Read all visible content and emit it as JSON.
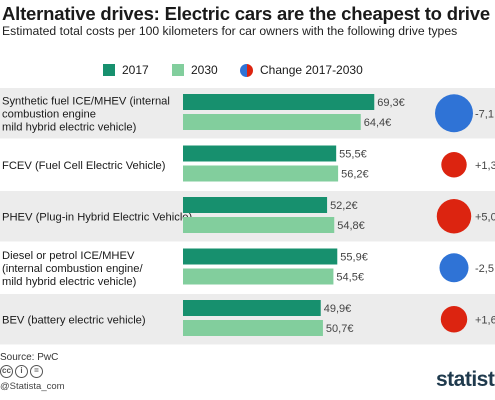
{
  "header": {
    "title": "Alternative drives: Electric cars are the cheapest to drive",
    "subtitle": "Estimated total costs per 100 kilometers for car owners with the following drive types"
  },
  "legend": {
    "series_2017": "2017",
    "series_2030": "2030",
    "change": "Change 2017-2030"
  },
  "colors": {
    "series_2017": "#17906e",
    "series_2030": "#82ce9d",
    "change_decrease": "#2f73d6",
    "change_increase": "#dc2410",
    "row_shade": "#ececec"
  },
  "chart_data": {
    "type": "bar",
    "orientation": "horizontal",
    "title": "Alternative drives: Electric cars are the cheapest to drive",
    "subtitle": "Estimated total costs per 100 kilometers for car owners with the following drive types",
    "unit": "€",
    "categories": [
      [
        "Synthetic fuel ICE/MHEV (internal",
        "combustion engine",
        "mild hybrid electric vehicle)"
      ],
      [
        "FCEV (Fuel Cell Electric Vehicle)"
      ],
      [
        "PHEV (Plug-in Hybrid Electric Vehicle)"
      ],
      [
        "Diesel or petrol ICE/MHEV",
        "(internal combustion engine/",
        "mild hybrid electric vehicle)"
      ],
      [
        "BEV (battery electric vehicle)"
      ]
    ],
    "series": [
      {
        "name": "2017",
        "values": [
          69.3,
          55.5,
          52.2,
          55.9,
          49.9
        ],
        "labels": [
          "69,3€",
          "55,5€",
          "52,2€",
          "55,9€",
          "49,9€"
        ]
      },
      {
        "name": "2030",
        "values": [
          64.4,
          56.2,
          54.8,
          54.5,
          50.7
        ],
        "labels": [
          "64,4€",
          "56,2€",
          "54,8€",
          "54,5€",
          "50,7€"
        ]
      }
    ],
    "change": {
      "name": "Change 2017-2030",
      "values": [
        -7.1,
        1.3,
        5.0,
        -2.5,
        1.6
      ],
      "labels": [
        "-7,1",
        "+1,3",
        "+5,0",
        "-2,5",
        "+1,6"
      ]
    },
    "xlim": [
      0,
      75
    ]
  },
  "footer": {
    "source": "Source: PwC",
    "cc_icons": [
      "cc",
      "i",
      "="
    ],
    "handle": "@Statista_com",
    "brand": "statista"
  }
}
